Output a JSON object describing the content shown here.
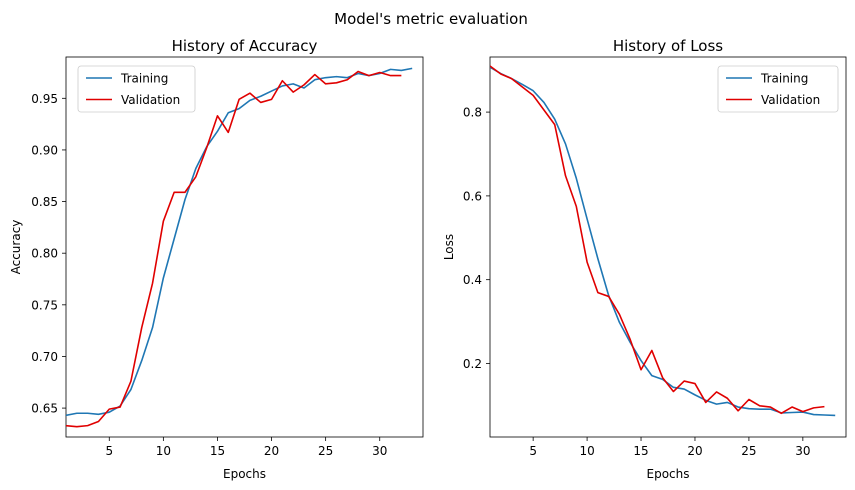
{
  "figure_title": "Model's metric evaluation",
  "colors": {
    "training": "#1f77b4",
    "validation": "#e00000"
  },
  "chart_data": [
    {
      "type": "line",
      "title": "History of Accuracy",
      "xlabel": "Epochs",
      "ylabel": "Accuracy",
      "xlim": [
        1,
        34
      ],
      "ylim": [
        0.622,
        0.99
      ],
      "xticks": [
        5,
        10,
        15,
        20,
        25,
        30
      ],
      "yticks": [
        0.65,
        0.7,
        0.75,
        0.8,
        0.85,
        0.9,
        0.95
      ],
      "ytick_labels": [
        "0.65",
        "0.70",
        "0.75",
        "0.80",
        "0.85",
        "0.90",
        "0.95"
      ],
      "grid": false,
      "legend": "upper left",
      "series": [
        {
          "name": "Training",
          "color": "#1f77b4",
          "x": [
            1,
            2,
            3,
            4,
            5,
            6,
            7,
            8,
            9,
            10,
            11,
            12,
            13,
            14,
            15,
            16,
            17,
            18,
            19,
            20,
            21,
            22,
            23,
            24,
            25,
            26,
            27,
            28,
            29,
            30,
            31,
            32,
            33
          ],
          "values": [
            0.643,
            0.645,
            0.645,
            0.644,
            0.646,
            0.652,
            0.668,
            0.696,
            0.728,
            0.776,
            0.814,
            0.852,
            0.882,
            0.903,
            0.918,
            0.936,
            0.94,
            0.948,
            0.952,
            0.957,
            0.962,
            0.964,
            0.96,
            0.968,
            0.97,
            0.971,
            0.97,
            0.974,
            0.972,
            0.974,
            0.978,
            0.977,
            0.979
          ]
        },
        {
          "name": "Validation",
          "color": "#e00000",
          "x": [
            1,
            2,
            3,
            4,
            5,
            6,
            7,
            8,
            9,
            10,
            11,
            12,
            13,
            14,
            15,
            16,
            17,
            18,
            19,
            20,
            21,
            22,
            23,
            24,
            25,
            26,
            27,
            28,
            29,
            30,
            31,
            32
          ],
          "values": [
            0.633,
            0.632,
            0.633,
            0.637,
            0.649,
            0.651,
            0.676,
            0.728,
            0.771,
            0.831,
            0.859,
            0.859,
            0.874,
            0.902,
            0.933,
            0.917,
            0.949,
            0.955,
            0.946,
            0.949,
            0.967,
            0.956,
            0.963,
            0.973,
            0.964,
            0.965,
            0.968,
            0.976,
            0.972,
            0.975,
            0.972,
            0.972
          ]
        }
      ]
    },
    {
      "type": "line",
      "title": "History of Loss",
      "xlabel": "Epochs",
      "ylabel": "Loss",
      "xlim": [
        1,
        34
      ],
      "ylim": [
        0.0245,
        0.9315
      ],
      "xticks": [
        5,
        10,
        15,
        20,
        25,
        30
      ],
      "yticks": [
        0.2,
        0.4,
        0.6,
        0.8
      ],
      "ytick_labels": [
        "0.2",
        "0.4",
        "0.6",
        "0.8"
      ],
      "grid": false,
      "legend": "upper right",
      "series": [
        {
          "name": "Training",
          "color": "#1f77b4",
          "x": [
            1,
            2,
            3,
            4,
            5,
            6,
            7,
            8,
            9,
            10,
            11,
            12,
            13,
            14,
            15,
            16,
            17,
            18,
            19,
            20,
            21,
            22,
            23,
            24,
            25,
            26,
            27,
            28,
            29,
            30,
            31,
            32,
            33
          ],
          "values": [
            0.907,
            0.892,
            0.88,
            0.866,
            0.851,
            0.823,
            0.783,
            0.724,
            0.642,
            0.545,
            0.45,
            0.362,
            0.298,
            0.25,
            0.207,
            0.171,
            0.162,
            0.143,
            0.139,
            0.125,
            0.112,
            0.103,
            0.107,
            0.096,
            0.092,
            0.091,
            0.091,
            0.082,
            0.083,
            0.084,
            0.078,
            0.077,
            0.076
          ]
        },
        {
          "name": "Validation",
          "color": "#e00000",
          "x": [
            1,
            2,
            3,
            4,
            5,
            6,
            7,
            8,
            9,
            10,
            11,
            12,
            13,
            14,
            15,
            16,
            17,
            18,
            19,
            20,
            21,
            22,
            23,
            24,
            25,
            26,
            27,
            28,
            29,
            30,
            31,
            32
          ],
          "values": [
            0.91,
            0.891,
            0.88,
            0.86,
            0.84,
            0.805,
            0.77,
            0.648,
            0.575,
            0.442,
            0.369,
            0.36,
            0.317,
            0.257,
            0.185,
            0.231,
            0.166,
            0.133,
            0.158,
            0.152,
            0.107,
            0.132,
            0.117,
            0.087,
            0.114,
            0.099,
            0.096,
            0.081,
            0.096,
            0.085,
            0.094,
            0.097
          ]
        }
      ]
    }
  ]
}
